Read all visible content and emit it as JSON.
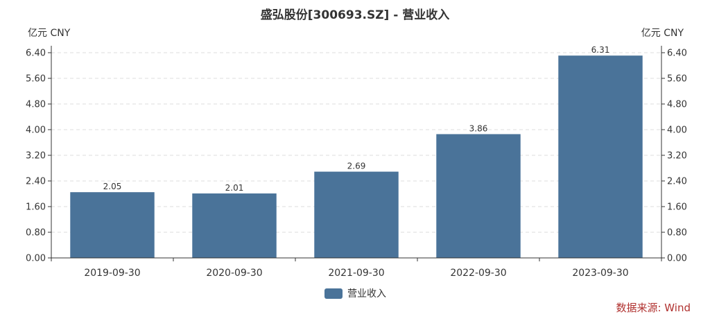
{
  "chart_data": {
    "type": "bar",
    "title": "盛弘股份[300693.SZ] - 营业收入",
    "y_unit_left": "亿元  CNY",
    "y_unit_right": "亿元  CNY",
    "categories": [
      "2019-09-30",
      "2020-09-30",
      "2021-09-30",
      "2022-09-30",
      "2023-09-30"
    ],
    "series": [
      {
        "name": "营业收入",
        "values": [
          2.05,
          2.01,
          2.69,
          3.86,
          6.31
        ],
        "color": "#4a7399"
      }
    ],
    "data_labels": [
      "2.05",
      "2.01",
      "2.69",
      "3.86",
      "6.31"
    ],
    "y_ticks": [
      "0.00",
      "0.80",
      "1.60",
      "2.40",
      "3.20",
      "4.00",
      "4.80",
      "5.60",
      "6.40"
    ],
    "ylim": [
      0,
      6.4
    ],
    "grid": true,
    "legend_position": "bottom-center",
    "source": "数据来源: Wind",
    "colors": {
      "bar": "#4a7399",
      "source": "#b0312f",
      "grid": "#dddddd",
      "axis": "#333333"
    }
  }
}
